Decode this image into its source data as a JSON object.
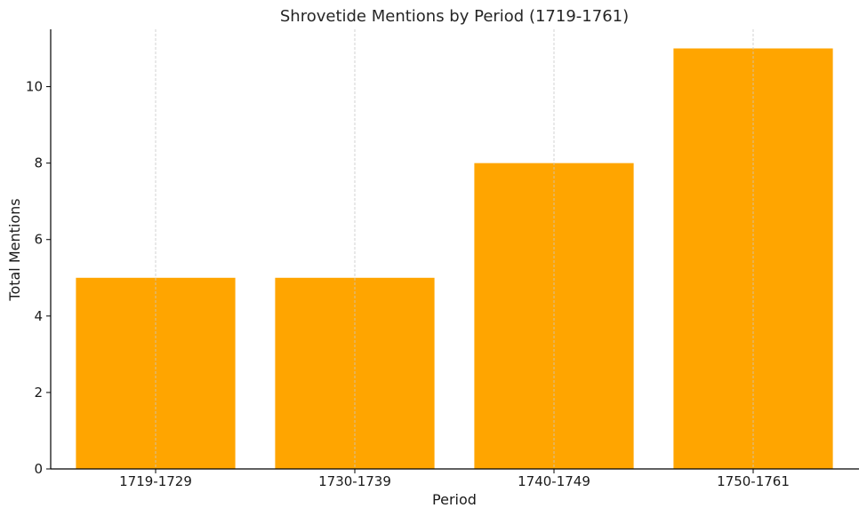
{
  "chart_data": {
    "type": "bar",
    "title": "Shrovetide Mentions by Period (1719-1761)",
    "xlabel": "Period",
    "ylabel": "Total Mentions",
    "categories": [
      "1719-1729",
      "1730-1739",
      "1740-1749",
      "1750-1761"
    ],
    "values": [
      5,
      5,
      8,
      11
    ],
    "ylim": [
      0,
      11.5
    ],
    "yticks": [
      0,
      2,
      4,
      6,
      8,
      10
    ],
    "grid": "vertical-dashed",
    "bar_color": "#FFA500",
    "grid_color": "#c8c8c8",
    "axis_color": "#000000"
  }
}
